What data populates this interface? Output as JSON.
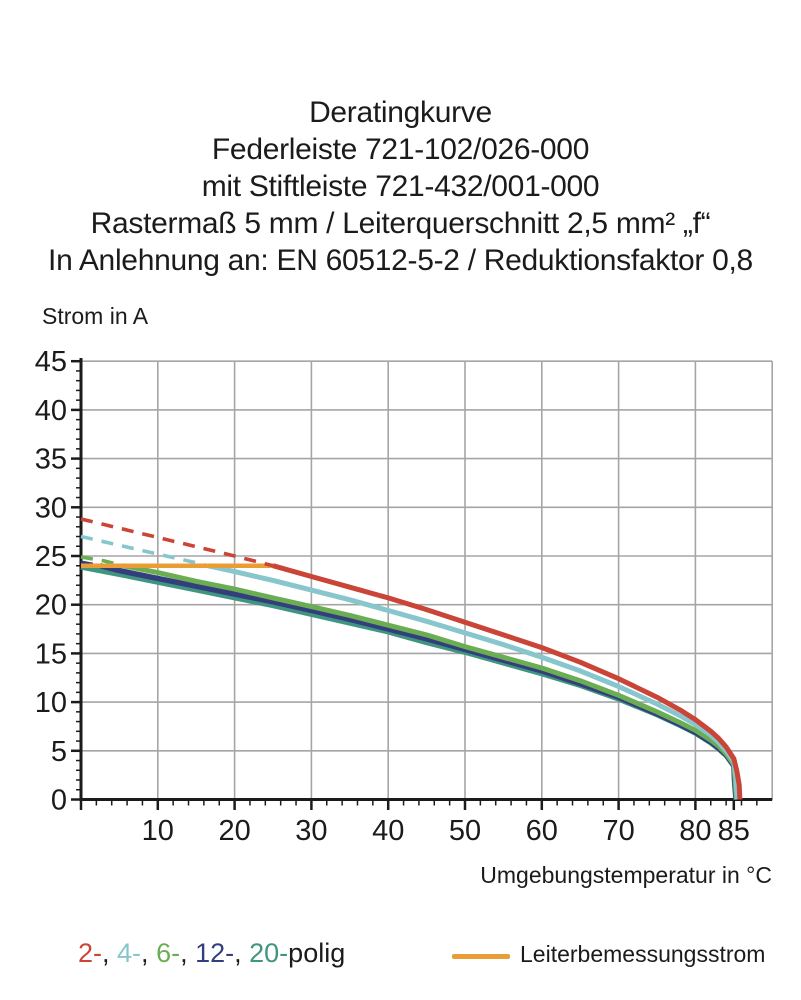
{
  "title": {
    "lines": [
      "Deratingkurve",
      "Federleiste 721-102/026-000",
      "mit Stiftleiste 721-432/001-000",
      "Rastermaß 5 mm / Leiterquerschnitt 2,5 mm² „f“",
      "In Anlehnung an: EN 60512-5-2 / Reduktionsfaktor 0,8"
    ]
  },
  "legend": {
    "poles": {
      "tokens": [
        {
          "text": "2-",
          "color": "#ca4437"
        },
        {
          "text": ", ",
          "color": "#1b1b1b"
        },
        {
          "text": "4-",
          "color": "#87c6cd"
        },
        {
          "text": ", ",
          "color": "#1b1b1b"
        },
        {
          "text": "6-",
          "color": "#6bad52"
        },
        {
          "text": ", ",
          "color": "#1b1b1b"
        },
        {
          "text": "12-",
          "color": "#333f7d"
        },
        {
          "text": ", ",
          "color": "#1b1b1b"
        },
        {
          "text": "20-",
          "color": "#3f957f"
        },
        {
          "text": "polig",
          "color": "#1b1b1b"
        }
      ]
    },
    "rated_current_label": "Leiterbemessungsstrom",
    "rated_current_color": "#eb9d35"
  },
  "chart_data": {
    "type": "line",
    "title": "Deratingkurve Federleiste 721-102/026-000 mit Stiftleiste 721-432/001-000",
    "xlabel": "Umgebungstemperatur in °C",
    "ylabel": "Strom in A",
    "xlim": [
      0,
      90
    ],
    "ylim": [
      0,
      45
    ],
    "grid": true,
    "grid_color": "#a5a5a5",
    "x_major_ticks": [
      10,
      20,
      30,
      40,
      50,
      60,
      70,
      80,
      85
    ],
    "x_gridlines": [
      10,
      20,
      30,
      40,
      50,
      60,
      70,
      80,
      90
    ],
    "y_major_ticks": [
      0,
      5,
      10,
      15,
      20,
      25,
      30,
      35,
      40,
      45
    ],
    "x_minor_step": 2,
    "y_minor_step": 1,
    "rated_current_A": 24,
    "series": [
      {
        "name": "20-polig",
        "color": "#3f957f",
        "width": 5,
        "solid_points": [
          [
            0,
            23.85
          ],
          [
            5,
            23.1
          ],
          [
            10,
            22.3
          ],
          [
            15,
            21.5
          ],
          [
            20,
            20.7
          ],
          [
            25,
            19.9
          ],
          [
            30,
            19.0
          ],
          [
            35,
            18.1
          ],
          [
            40,
            17.2
          ],
          [
            45,
            16.1
          ],
          [
            50,
            15.1
          ],
          [
            55,
            14.0
          ],
          [
            60,
            12.9
          ],
          [
            65,
            11.7
          ],
          [
            70,
            10.3
          ],
          [
            75,
            8.7
          ],
          [
            78,
            7.6
          ],
          [
            80,
            6.8
          ],
          [
            82,
            5.8
          ],
          [
            83,
            5.2
          ],
          [
            84,
            4.5
          ],
          [
            85,
            3.4
          ],
          [
            85.05,
            2.0
          ],
          [
            85.25,
            0
          ]
        ]
      },
      {
        "name": "12-polig",
        "color": "#333f7d",
        "width": 5.5,
        "dashed_points": [
          [
            0,
            24.35
          ],
          [
            2.5,
            24.0
          ]
        ],
        "solid_points": [
          [
            2.5,
            24.0
          ],
          [
            5,
            23.5
          ],
          [
            10,
            22.7
          ],
          [
            15,
            21.9
          ],
          [
            20,
            21.1
          ],
          [
            25,
            20.3
          ],
          [
            30,
            19.4
          ],
          [
            35,
            18.5
          ],
          [
            40,
            17.5
          ],
          [
            45,
            16.5
          ],
          [
            50,
            15.4
          ],
          [
            55,
            14.3
          ],
          [
            60,
            13.2
          ],
          [
            65,
            11.9
          ],
          [
            70,
            10.5
          ],
          [
            75,
            8.8
          ],
          [
            78,
            7.7
          ],
          [
            80,
            6.9
          ],
          [
            82,
            5.9
          ],
          [
            83,
            5.3
          ],
          [
            84,
            4.6
          ],
          [
            85,
            3.5
          ],
          [
            85.1,
            2.1
          ],
          [
            85.3,
            0
          ]
        ]
      },
      {
        "name": "6-polig",
        "color": "#6bad52",
        "width": 5,
        "dashed_points": [
          [
            0,
            24.9
          ],
          [
            3,
            24.5
          ],
          [
            5.5,
            24.0
          ]
        ],
        "solid_points": [
          [
            5.5,
            24.0
          ],
          [
            10,
            23.3
          ],
          [
            15,
            22.4
          ],
          [
            20,
            21.6
          ],
          [
            25,
            20.7
          ],
          [
            30,
            19.8
          ],
          [
            35,
            18.9
          ],
          [
            40,
            17.9
          ],
          [
            45,
            16.9
          ],
          [
            50,
            15.7
          ],
          [
            55,
            14.6
          ],
          [
            60,
            13.5
          ],
          [
            65,
            12.2
          ],
          [
            70,
            10.7
          ],
          [
            75,
            9.0
          ],
          [
            78,
            7.9
          ],
          [
            80,
            7.1
          ],
          [
            82,
            6.1
          ],
          [
            83,
            5.5
          ],
          [
            84,
            4.7
          ],
          [
            85,
            3.6
          ],
          [
            85.15,
            2.2
          ],
          [
            85.35,
            0
          ]
        ]
      },
      {
        "name": "4-polig",
        "color": "#87c6cd",
        "width": 5,
        "dashed_points": [
          [
            0,
            27.0
          ],
          [
            5,
            26.1
          ],
          [
            10,
            25.2
          ],
          [
            15,
            24.3
          ],
          [
            16.5,
            24.0
          ]
        ],
        "solid_points": [
          [
            16.5,
            24.0
          ],
          [
            20,
            23.4
          ],
          [
            25,
            22.5
          ],
          [
            30,
            21.5
          ],
          [
            35,
            20.5
          ],
          [
            40,
            19.4
          ],
          [
            45,
            18.3
          ],
          [
            50,
            17.1
          ],
          [
            55,
            15.9
          ],
          [
            60,
            14.6
          ],
          [
            65,
            13.2
          ],
          [
            70,
            11.6
          ],
          [
            75,
            9.8
          ],
          [
            78,
            8.6
          ],
          [
            80,
            7.7
          ],
          [
            82,
            6.6
          ],
          [
            83,
            5.9
          ],
          [
            84,
            5.0
          ],
          [
            85,
            3.9
          ],
          [
            85.25,
            2.4
          ],
          [
            85.45,
            0
          ]
        ]
      },
      {
        "name": "Leiterbemessungsstrom",
        "color": "#eb9d35",
        "width": 4.5,
        "solid_points": [
          [
            0,
            24
          ],
          [
            25,
            24
          ]
        ]
      },
      {
        "name": "2-polig",
        "color": "#ca4437",
        "width": 5,
        "dashed_points": [
          [
            0,
            28.8
          ],
          [
            5,
            27.85
          ],
          [
            10,
            26.9
          ],
          [
            15,
            25.95
          ],
          [
            20,
            25.0
          ],
          [
            25,
            24.0
          ]
        ],
        "solid_points": [
          [
            25,
            24.0
          ],
          [
            30,
            22.9
          ],
          [
            35,
            21.8
          ],
          [
            40,
            20.7
          ],
          [
            45,
            19.5
          ],
          [
            50,
            18.2
          ],
          [
            55,
            16.9
          ],
          [
            60,
            15.6
          ],
          [
            65,
            14.1
          ],
          [
            70,
            12.4
          ],
          [
            75,
            10.5
          ],
          [
            78,
            9.2
          ],
          [
            80,
            8.2
          ],
          [
            82,
            7.0
          ],
          [
            83,
            6.3
          ],
          [
            84,
            5.4
          ],
          [
            85,
            4.2
          ],
          [
            85.4,
            2.9
          ],
          [
            85.7,
            1.5
          ],
          [
            85.8,
            0
          ]
        ]
      }
    ]
  }
}
